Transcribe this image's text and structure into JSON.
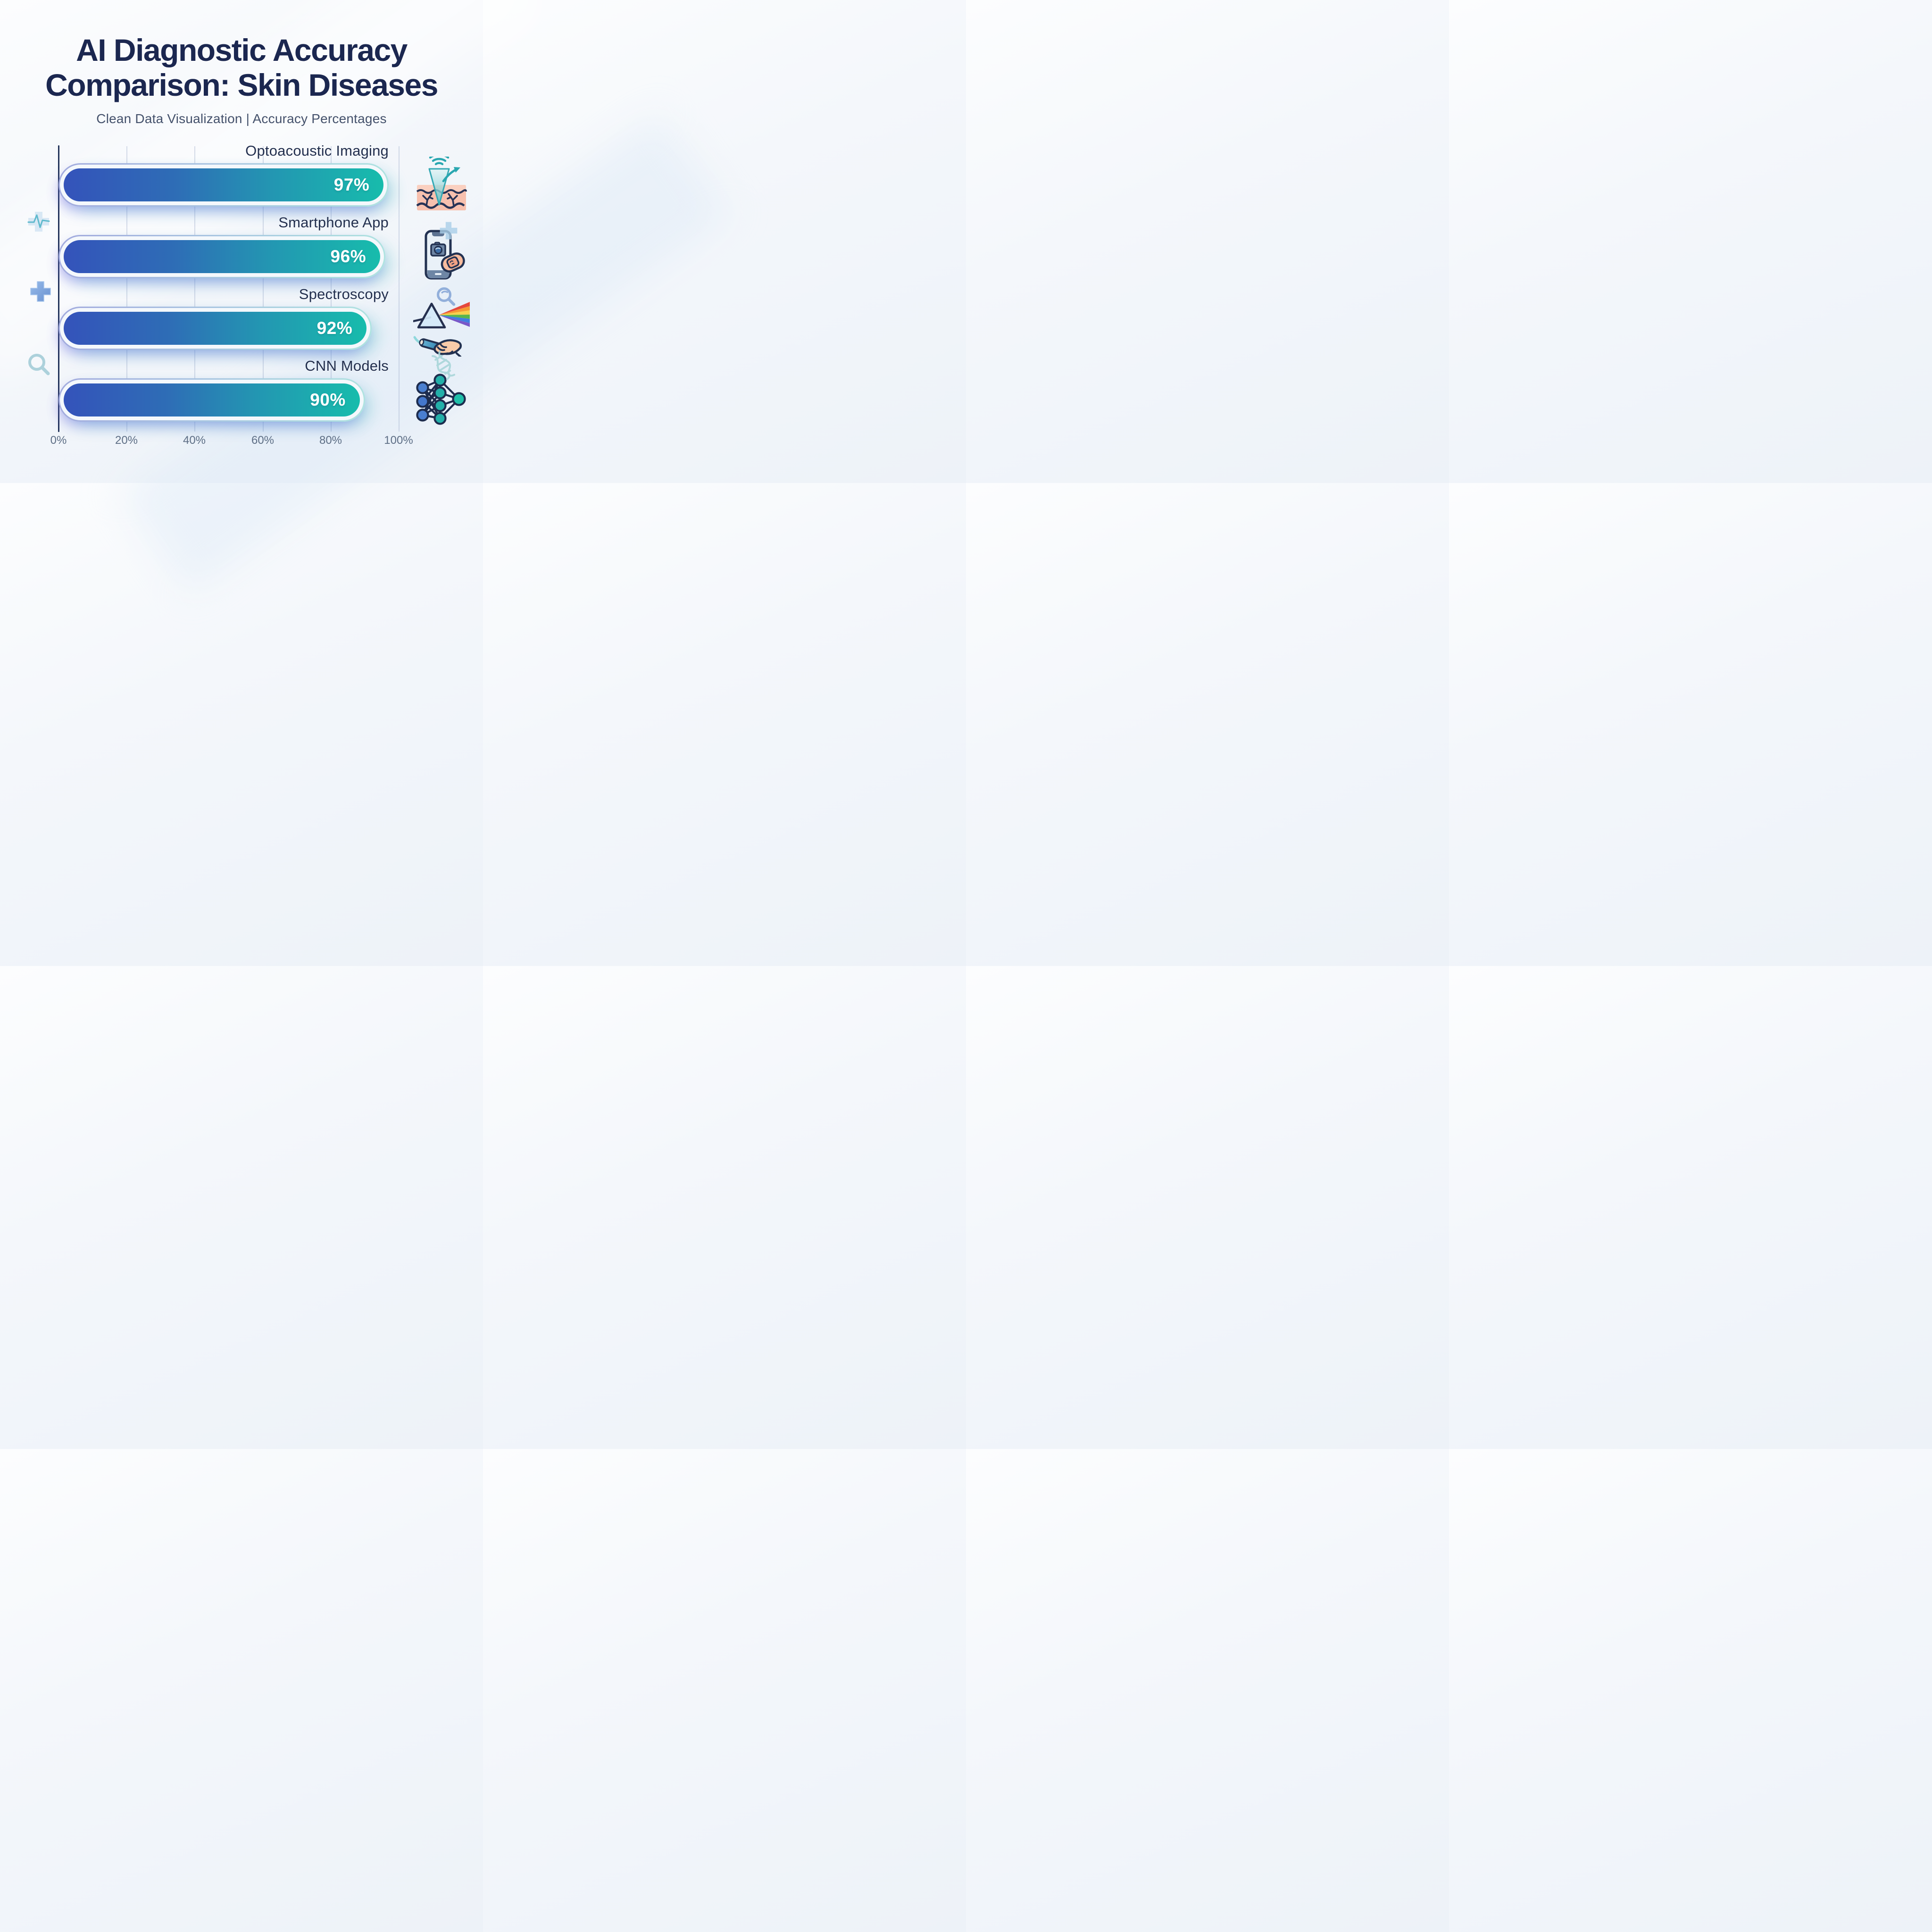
{
  "header": {
    "title_line1": "AI Diagnostic Accuracy",
    "title_line2": "Comparison: Skin Diseases",
    "subtitle": "Clean Data Visualization | Accuracy Percentages"
  },
  "chart_data": {
    "type": "bar",
    "orientation": "horizontal",
    "title": "AI Diagnostic Accuracy Comparison: Skin Diseases",
    "subtitle": "Clean Data Visualization | Accuracy Percentages",
    "categories": [
      "Optoacoustic Imaging",
      "Smartphone App",
      "Spectroscopy",
      "CNN Models"
    ],
    "values": [
      97,
      96,
      92,
      90
    ],
    "value_labels": [
      "97%",
      "96%",
      "92%",
      "90%"
    ],
    "x_tick_labels": [
      "0%",
      "20%",
      "40%",
      "60%",
      "80%",
      "100%"
    ],
    "xlim": [
      0,
      100
    ],
    "grid": true,
    "legend": "none",
    "bar_gradient": [
      "#3453ba",
      "#2e6db6",
      "#2396b2",
      "#17bcac"
    ],
    "row_icons": [
      "optoacoustic-imaging-icon",
      "smartphone-app-icon",
      "spectroscopy-prism-icon",
      "cnn-network-icon"
    ]
  },
  "decorations": {
    "left": [
      "pulse-cross-icon",
      "plus-icon",
      "magnifier-icon"
    ],
    "right": [
      "plus-icon",
      "magnifier-icon",
      "dna-icon"
    ]
  },
  "colors": {
    "title": "#1b2750",
    "subtitle": "#44516b",
    "bar_label": "#222f4e",
    "value_text": "#ffffff",
    "axis_line": "#22345a",
    "gridline": "#96a5c6",
    "tick_label": "#5d6e85",
    "bar_start": "#3453ba",
    "bar_end": "#17bcac",
    "bar_border_left": "#a2aade",
    "bar_border_right": "#aee4e0"
  }
}
